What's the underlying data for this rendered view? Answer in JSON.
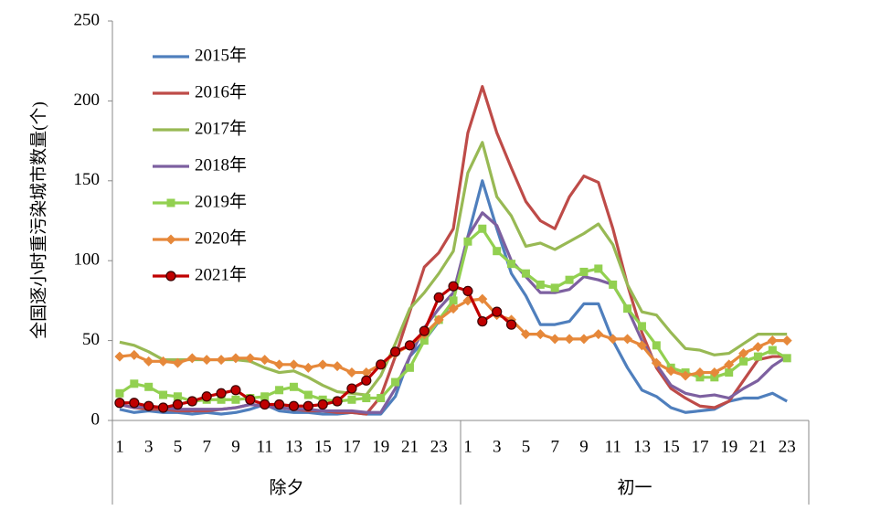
{
  "chart_data": {
    "type": "line",
    "y_label": "全国逐小时重污染城市数量(个)",
    "categories": [
      "1",
      null,
      "3",
      null,
      "5",
      null,
      "7",
      null,
      "9",
      null,
      "11",
      null,
      "13",
      null,
      "15",
      null,
      "17",
      null,
      "19",
      null,
      "21",
      null,
      "23",
      null,
      "1",
      null,
      "3",
      null,
      "5",
      null,
      "7",
      null,
      "9",
      null,
      "11",
      null,
      "13",
      null,
      "15",
      null,
      "17",
      null,
      "19",
      null,
      "21",
      null,
      "23",
      null
    ],
    "groups": [
      "除夕",
      "初一"
    ],
    "ylim": [
      0,
      250
    ],
    "yticks": [
      0,
      50,
      100,
      150,
      200,
      250
    ],
    "grid": false,
    "legend": "upper left",
    "series": [
      {
        "name": "2015年",
        "color": "#4f7fbd",
        "marker": null,
        "values": [
          7,
          5,
          6,
          5,
          5,
          4,
          5,
          4,
          5,
          7,
          10,
          6,
          5,
          5,
          4,
          4,
          5,
          4,
          4,
          15,
          40,
          50,
          62,
          75,
          115,
          150,
          120,
          92,
          78,
          60,
          60,
          62,
          73,
          73,
          50,
          33,
          19,
          15,
          8,
          5,
          6,
          7,
          12,
          14,
          14,
          17,
          12,
          null
        ]
      },
      {
        "name": "2016年",
        "color": "#be4b48",
        "marker": null,
        "values": [
          10,
          8,
          7,
          7,
          6,
          6,
          6,
          7,
          8,
          10,
          9,
          8,
          7,
          6,
          6,
          5,
          5,
          4,
          15,
          40,
          68,
          96,
          105,
          120,
          180,
          209,
          180,
          158,
          137,
          125,
          120,
          140,
          153,
          149,
          120,
          85,
          55,
          33,
          20,
          14,
          9,
          8,
          12,
          25,
          38,
          40,
          40,
          null
        ]
      },
      {
        "name": "2017年",
        "color": "#98b954",
        "marker": null,
        "values": [
          49,
          47,
          43,
          38,
          38,
          38,
          38,
          38,
          38,
          37,
          33,
          30,
          31,
          27,
          22,
          18,
          17,
          16,
          28,
          48,
          70,
          80,
          92,
          106,
          155,
          174,
          140,
          128,
          109,
          111,
          107,
          112,
          117,
          123,
          110,
          85,
          68,
          66,
          55,
          45,
          44,
          41,
          42,
          48,
          54,
          54,
          54,
          null
        ]
      },
      {
        "name": "2018年",
        "color": "#7d60a0",
        "marker": null,
        "values": [
          10,
          8,
          9,
          8,
          7,
          7,
          7,
          7,
          8,
          10,
          9,
          8,
          7,
          7,
          6,
          6,
          6,
          5,
          5,
          20,
          40,
          58,
          70,
          80,
          115,
          130,
          122,
          100,
          90,
          80,
          80,
          82,
          90,
          88,
          85,
          70,
          50,
          35,
          22,
          17,
          15,
          16,
          14,
          20,
          25,
          34,
          40,
          null
        ]
      },
      {
        "name": "2019年",
        "color": "#92d050",
        "marker": "square",
        "values": [
          17,
          23,
          21,
          16,
          15,
          12,
          13,
          13,
          13,
          14,
          15,
          19,
          21,
          16,
          13,
          12,
          13,
          14,
          14,
          24,
          33,
          50,
          63,
          75,
          112,
          120,
          106,
          98,
          92,
          85,
          83,
          88,
          93,
          95,
          85,
          70,
          59,
          47,
          33,
          30,
          27,
          27,
          30,
          37,
          40,
          44,
          39,
          null
        ]
      },
      {
        "name": "2020年",
        "color": "#e6883a",
        "marker": "diamond",
        "values": [
          40,
          41,
          37,
          37,
          36,
          39,
          38,
          38,
          39,
          39,
          38,
          35,
          35,
          33,
          35,
          34,
          30,
          30,
          35,
          42,
          47,
          54,
          63,
          70,
          75,
          76,
          66,
          63,
          54,
          54,
          51,
          51,
          51,
          54,
          51,
          51,
          47,
          36,
          31,
          28,
          30,
          30,
          35,
          42,
          46,
          50,
          50,
          null
        ]
      },
      {
        "name": "2021年",
        "color": "#c00000",
        "marker": "circle",
        "values": [
          11,
          11,
          9,
          8,
          10,
          12,
          15,
          17,
          19,
          13,
          10,
          10,
          9,
          9,
          10,
          12,
          20,
          25,
          35,
          43,
          47,
          56,
          77,
          84,
          81,
          62,
          68,
          60,
          null,
          null,
          null,
          null,
          null,
          null,
          null,
          null,
          null,
          null,
          null,
          null,
          null,
          null,
          null,
          null,
          null,
          null,
          null,
          null
        ]
      }
    ]
  }
}
